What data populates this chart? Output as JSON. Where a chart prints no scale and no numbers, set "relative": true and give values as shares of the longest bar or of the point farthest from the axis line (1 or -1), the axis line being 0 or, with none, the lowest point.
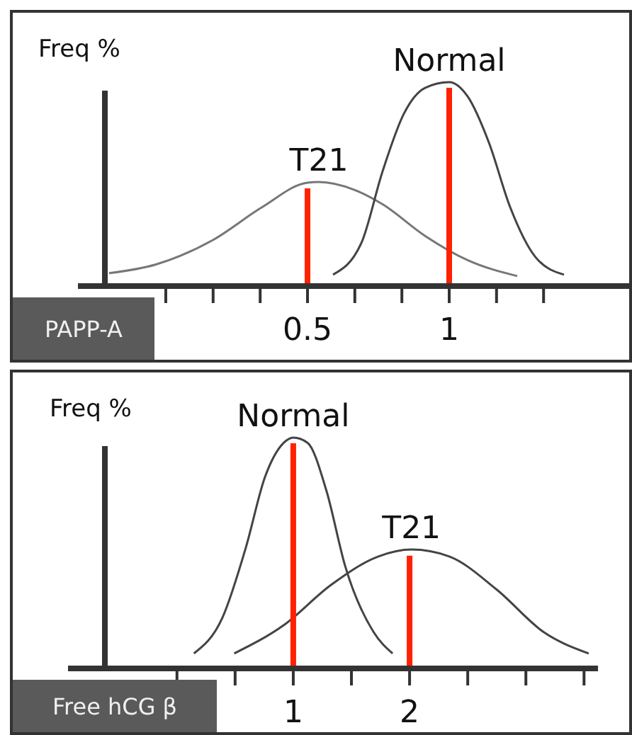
{
  "chart_data": [
    {
      "type": "line",
      "ylabel": "Freq %",
      "xlabel": "PAPP-A",
      "relative": true,
      "xlim": [
        -0.215,
        1.645
      ],
      "xticks": [
        {
          "value": 0,
          "label": null
        },
        {
          "value": 0.167,
          "label": null
        },
        {
          "value": 0.333,
          "label": null
        },
        0.5,
        {
          "value": 0.667,
          "label": null
        },
        {
          "value": 0.833,
          "label": null
        },
        1,
        {
          "value": 1.167,
          "label": null
        },
        {
          "value": 1.333,
          "label": null
        }
      ],
      "series": [
        {
          "name": "T21",
          "color": "#777777",
          "x": [
            -0.2,
            -0.035,
            0.165,
            0.34,
            0.5,
            0.54,
            0.665,
            0.765,
            0.915,
            1.065,
            1.24
          ],
          "values": [
            0.063,
            0.106,
            0.225,
            0.387,
            0.507,
            0.51,
            0.472,
            0.401,
            0.246,
            0.127,
            0.049
          ]
        },
        {
          "name": "Normal",
          "color": "#444444",
          "x": [
            0.59,
            0.69,
            0.765,
            0.84,
            0.915,
            1.0,
            1.065,
            1.14,
            1.215,
            1.305,
            1.405
          ],
          "values": [
            0.056,
            0.211,
            0.563,
            0.845,
            0.972,
            1.0,
            0.93,
            0.704,
            0.387,
            0.141,
            0.056
          ]
        }
      ],
      "ref_lines": [
        {
          "axis": "x",
          "value": 0.5,
          "color": "#ff2200"
        },
        {
          "axis": "x",
          "value": 1,
          "color": "#ff2200"
        }
      ]
    },
    {
      "type": "line",
      "ylabel": "Freq %",
      "xlabel": "Free hCG β",
      "relative": true,
      "xlim": [
        -0.62,
        3.62
      ],
      "xticks": [
        {
          "value": 0,
          "label": null
        },
        {
          "value": 0.5,
          "label": null
        },
        1,
        {
          "value": 1.5,
          "label": null
        },
        2,
        {
          "value": 2.5,
          "label": null
        },
        {
          "value": 3,
          "label": null
        },
        {
          "value": 3.5,
          "label": null
        }
      ],
      "series": [
        {
          "name": "Normal",
          "color": "#444444",
          "x": [
            0.146,
            0.39,
            0.593,
            0.756,
            0.919,
            1.0,
            1.122,
            1.285,
            1.447,
            1.691,
            1.854
          ],
          "values": [
            0.065,
            0.219,
            0.525,
            0.828,
            0.978,
            1.0,
            0.978,
            0.77,
            0.442,
            0.157,
            0.065
          ]
        },
        {
          "name": "T21",
          "color": "#444444",
          "x": [
            0.492,
            0.919,
            1.325,
            1.732,
            2.016,
            2.341,
            2.748,
            3.154,
            3.54
          ],
          "values": [
            0.065,
            0.188,
            0.362,
            0.485,
            0.515,
            0.485,
            0.342,
            0.157,
            0.065
          ]
        }
      ],
      "ref_lines": [
        {
          "axis": "x",
          "value": 1,
          "color": "#ff2200"
        },
        {
          "axis": "x",
          "value": 2,
          "color": "#ff2200"
        }
      ]
    }
  ]
}
